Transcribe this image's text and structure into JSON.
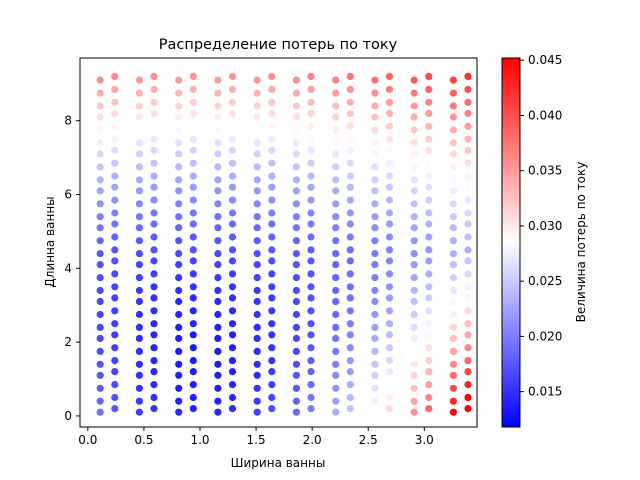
{
  "chart_data": {
    "type": "scatter",
    "title": "Распределение потерь по току",
    "xlabel": "Ширина ванны",
    "ylabel": "Длинна ванны",
    "colorbar_label": "Величина потерь по току",
    "xlim": [
      -0.07,
      3.47
    ],
    "ylim": [
      -0.3,
      9.7
    ],
    "x_ticks": [
      0.0,
      0.5,
      1.0,
      1.5,
      2.0,
      2.5,
      3.0
    ],
    "x_tick_labels": [
      "0.0",
      "0.5",
      "1.0",
      "1.5",
      "2.0",
      "2.5",
      "3.0"
    ],
    "y_ticks": [
      0,
      2,
      4,
      6,
      8
    ],
    "y_tick_labels": [
      "0",
      "2",
      "4",
      "6",
      "8"
    ],
    "color_range": [
      0.0118,
      0.0452
    ],
    "colorbar_ticks": [
      0.015,
      0.02,
      0.025,
      0.03,
      0.035,
      0.04,
      0.045
    ],
    "colorbar_tick_labels": [
      "0.015",
      "0.020",
      "0.025",
      "0.030",
      "0.035",
      "0.040",
      "0.045"
    ],
    "colormap": [
      "#0000ff",
      "#ffffff",
      "#ff0000"
    ],
    "grid": false,
    "columns": [
      {
        "x": 0.11,
        "y": [
          0.1,
          0.4,
          0.75,
          1.1,
          1.4,
          1.75,
          2.1,
          2.4,
          2.75,
          3.1,
          3.4,
          3.75,
          4.1,
          4.4,
          4.75,
          5.1,
          5.4,
          5.75,
          6.1,
          6.4,
          6.75,
          7.1,
          7.4,
          7.75,
          8.1,
          8.4,
          8.75,
          9.1
        ]
      },
      {
        "x": 0.24,
        "y": [
          0.2,
          0.5,
          0.85,
          1.2,
          1.5,
          1.85,
          2.2,
          2.5,
          2.85,
          3.2,
          3.5,
          3.85,
          4.2,
          4.5,
          4.85,
          5.2,
          5.5,
          5.85,
          6.2,
          6.5,
          6.85,
          7.2,
          7.5,
          7.85,
          8.2,
          8.5,
          8.85,
          9.2
        ]
      },
      {
        "x": 0.46,
        "y": [
          0.1,
          0.4,
          0.75,
          1.1,
          1.4,
          1.75,
          2.1,
          2.4,
          2.75,
          3.1,
          3.4,
          3.75,
          4.1,
          4.4,
          4.75,
          5.1,
          5.4,
          5.75,
          6.1,
          6.4,
          6.75,
          7.1,
          7.4,
          7.75,
          8.1,
          8.4,
          8.75,
          9.1
        ]
      },
      {
        "x": 0.59,
        "y": [
          0.2,
          0.5,
          0.85,
          1.2,
          1.5,
          1.85,
          2.2,
          2.5,
          2.85,
          3.2,
          3.5,
          3.85,
          4.2,
          4.5,
          4.85,
          5.2,
          5.5,
          5.85,
          6.2,
          6.5,
          6.85,
          7.2,
          7.5,
          7.85,
          8.2,
          8.5,
          8.85,
          9.2
        ]
      },
      {
        "x": 0.81,
        "y": [
          0.1,
          0.4,
          0.75,
          1.1,
          1.4,
          1.75,
          2.1,
          2.4,
          2.75,
          3.1,
          3.4,
          3.75,
          4.1,
          4.4,
          4.75,
          5.1,
          5.4,
          5.75,
          6.1,
          6.4,
          6.75,
          7.1,
          7.4,
          7.75,
          8.1,
          8.4,
          8.75,
          9.1
        ]
      },
      {
        "x": 0.94,
        "y": [
          0.2,
          0.5,
          0.85,
          1.2,
          1.5,
          1.85,
          2.2,
          2.5,
          2.85,
          3.2,
          3.5,
          3.85,
          4.2,
          4.5,
          4.85,
          5.2,
          5.5,
          5.85,
          6.2,
          6.5,
          6.85,
          7.2,
          7.5,
          7.85,
          8.2,
          8.5,
          8.85,
          9.2
        ]
      },
      {
        "x": 1.16,
        "y": [
          0.1,
          0.4,
          0.75,
          1.1,
          1.4,
          1.75,
          2.1,
          2.4,
          2.75,
          3.1,
          3.4,
          3.75,
          4.1,
          4.4,
          4.75,
          5.1,
          5.4,
          5.75,
          6.1,
          6.4,
          6.75,
          7.1,
          7.4,
          7.75,
          8.1,
          8.4,
          8.75,
          9.1
        ]
      },
      {
        "x": 1.29,
        "y": [
          0.2,
          0.5,
          0.85,
          1.2,
          1.5,
          1.85,
          2.2,
          2.5,
          2.85,
          3.2,
          3.5,
          3.85,
          4.2,
          4.5,
          4.85,
          5.2,
          5.5,
          5.85,
          6.2,
          6.5,
          6.85,
          7.2,
          7.5,
          7.85,
          8.2,
          8.5,
          8.85,
          9.2
        ]
      },
      {
        "x": 1.51,
        "y": [
          0.1,
          0.4,
          0.75,
          1.1,
          1.4,
          1.75,
          2.1,
          2.4,
          2.75,
          3.1,
          3.4,
          3.75,
          4.1,
          4.4,
          4.75,
          5.1,
          5.4,
          5.75,
          6.1,
          6.4,
          6.75,
          7.1,
          7.4,
          7.75,
          8.1,
          8.4,
          8.75,
          9.1
        ]
      },
      {
        "x": 1.64,
        "y": [
          0.2,
          0.5,
          0.85,
          1.2,
          1.5,
          1.85,
          2.2,
          2.5,
          2.85,
          3.2,
          3.5,
          3.85,
          4.2,
          4.5,
          4.85,
          5.2,
          5.5,
          5.85,
          6.2,
          6.5,
          6.85,
          7.2,
          7.5,
          7.85,
          8.2,
          8.5,
          8.85,
          9.2
        ]
      },
      {
        "x": 1.86,
        "y": [
          0.1,
          0.4,
          0.75,
          1.1,
          1.4,
          1.75,
          2.1,
          2.4,
          2.75,
          3.1,
          3.4,
          3.75,
          4.1,
          4.4,
          4.75,
          5.1,
          5.4,
          5.75,
          6.1,
          6.4,
          6.75,
          7.1,
          7.4,
          7.75,
          8.1,
          8.4,
          8.75,
          9.1
        ]
      },
      {
        "x": 1.99,
        "y": [
          0.2,
          0.5,
          0.85,
          1.2,
          1.5,
          1.85,
          2.2,
          2.5,
          2.85,
          3.2,
          3.5,
          3.85,
          4.2,
          4.5,
          4.85,
          5.2,
          5.5,
          5.85,
          6.2,
          6.5,
          6.85,
          7.2,
          7.5,
          7.85,
          8.2,
          8.5,
          8.85,
          9.2
        ]
      },
      {
        "x": 2.21,
        "y": [
          0.1,
          0.4,
          0.75,
          1.1,
          1.4,
          1.75,
          2.1,
          2.4,
          2.75,
          3.1,
          3.4,
          3.75,
          4.1,
          4.4,
          4.75,
          5.1,
          5.4,
          5.75,
          6.1,
          6.4,
          6.75,
          7.1,
          7.4,
          7.75,
          8.1,
          8.4,
          8.75,
          9.1
        ]
      },
      {
        "x": 2.34,
        "y": [
          0.2,
          0.5,
          0.85,
          1.2,
          1.5,
          1.85,
          2.2,
          2.5,
          2.85,
          3.2,
          3.5,
          3.85,
          4.2,
          4.5,
          4.85,
          5.2,
          5.5,
          5.85,
          6.2,
          6.5,
          6.85,
          7.2,
          7.5,
          7.85,
          8.2,
          8.5,
          8.85,
          9.2
        ]
      },
      {
        "x": 2.56,
        "y": [
          0.1,
          0.4,
          0.75,
          1.1,
          1.4,
          1.75,
          2.1,
          2.4,
          2.75,
          3.1,
          3.4,
          3.75,
          4.1,
          4.4,
          4.75,
          5.1,
          5.4,
          5.75,
          6.1,
          6.4,
          6.75,
          7.1,
          7.4,
          7.75,
          8.1,
          8.4,
          8.75,
          9.1
        ]
      },
      {
        "x": 2.69,
        "y": [
          0.2,
          0.5,
          0.85,
          1.2,
          1.5,
          1.85,
          2.2,
          2.5,
          2.85,
          3.2,
          3.5,
          3.85,
          4.2,
          4.5,
          4.85,
          5.2,
          5.5,
          5.85,
          6.2,
          6.5,
          6.85,
          7.2,
          7.5,
          7.85,
          8.2,
          8.5,
          8.85,
          9.2
        ]
      },
      {
        "x": 2.91,
        "y": [
          0.1,
          0.4,
          0.75,
          1.1,
          1.4,
          1.75,
          2.1,
          2.4,
          2.75,
          3.1,
          3.4,
          3.75,
          4.1,
          4.4,
          4.75,
          5.1,
          5.4,
          5.75,
          6.1,
          6.4,
          6.75,
          7.1,
          7.4,
          7.75,
          8.1,
          8.4,
          8.75,
          9.1
        ]
      },
      {
        "x": 3.04,
        "y": [
          0.2,
          0.5,
          0.85,
          1.2,
          1.5,
          1.85,
          2.2,
          2.5,
          2.85,
          3.2,
          3.5,
          3.85,
          4.2,
          4.5,
          4.85,
          5.2,
          5.5,
          5.85,
          6.2,
          6.5,
          6.85,
          7.2,
          7.5,
          7.85,
          8.2,
          8.5,
          8.85,
          9.2
        ]
      },
      {
        "x": 3.26,
        "y": [
          0.1,
          0.4,
          0.75,
          1.1,
          1.4,
          1.75,
          2.1,
          2.4,
          2.75,
          3.1,
          3.4,
          3.75,
          4.1,
          4.4,
          4.75,
          5.1,
          5.4,
          5.75,
          6.1,
          6.4,
          6.75,
          7.1,
          7.4,
          7.75,
          8.1,
          8.4,
          8.75,
          9.1
        ]
      },
      {
        "x": 3.39,
        "y": [
          0.2,
          0.5,
          0.85,
          1.2,
          1.5,
          1.85,
          2.2,
          2.5,
          2.85,
          3.2,
          3.5,
          3.85,
          4.2,
          4.5,
          4.85,
          5.2,
          5.5,
          5.85,
          6.2,
          6.5,
          6.85,
          7.2,
          7.5,
          7.85,
          8.2,
          8.5,
          8.85,
          9.2
        ]
      }
    ]
  }
}
